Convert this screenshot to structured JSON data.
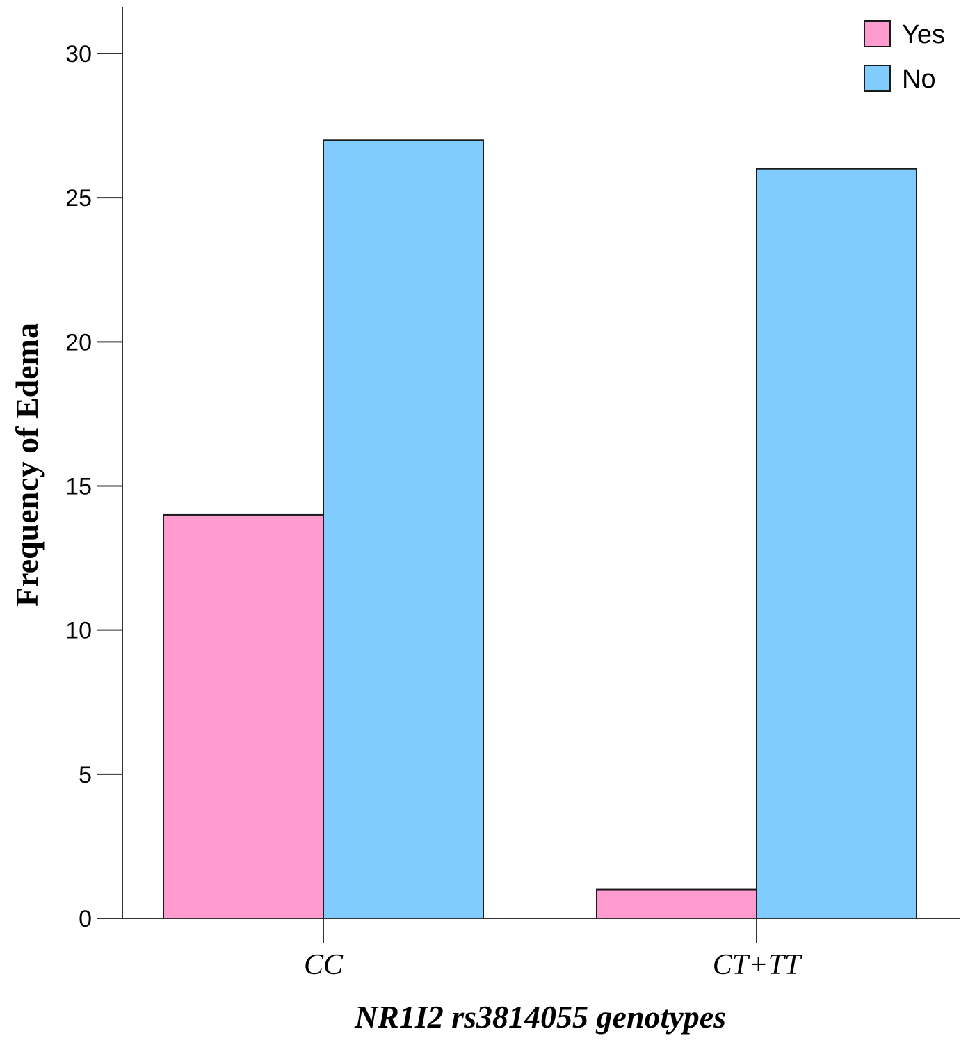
{
  "chart_data": {
    "type": "bar",
    "title": "",
    "xlabel": "NR1I2  rs3814055  genotypes",
    "ylabel": "Frequency of Edema",
    "categories": [
      "CC",
      "CT+TT"
    ],
    "series": [
      {
        "name": "Yes",
        "color": "#ff9ccf",
        "values": [
          14,
          1
        ]
      },
      {
        "name": "No",
        "color": "#80ccff",
        "values": [
          27,
          26
        ]
      }
    ],
    "ylim": [
      0,
      31.6
    ],
    "yticks": [
      0,
      5,
      10,
      15,
      20,
      25,
      30
    ],
    "ytick_labels": [
      "0",
      "5",
      "10",
      "15",
      "20",
      "25",
      "30"
    ],
    "grid": false,
    "legend": {
      "position": "top-right",
      "entries": [
        "Yes",
        "No"
      ]
    }
  }
}
